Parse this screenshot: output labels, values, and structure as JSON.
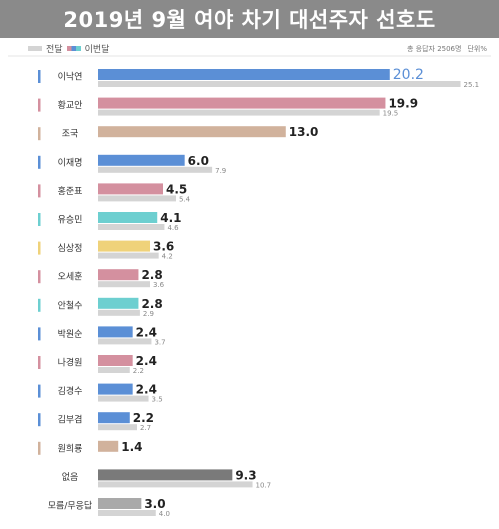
{
  "title": "2019년 9월 여야 차기 대선주자 선호도",
  "legend": {
    "previous": "전달",
    "current": "이번달",
    "previous_color": "#d4d4d4"
  },
  "note": {
    "sample": "총 응답자 2506명",
    "unit": "단위%"
  },
  "chart_data": {
    "type": "bar",
    "orientation": "horizontal",
    "title": "2019년 9월 여야 차기 대선주자 선호도",
    "categories": [
      "이낙연",
      "황교안",
      "조국",
      "이재명",
      "홍준표",
      "유승민",
      "심상정",
      "오세훈",
      "안철수",
      "박원순",
      "나경원",
      "김경수",
      "김부겸",
      "원희룡",
      "없음",
      "모름/무응답"
    ],
    "series": [
      {
        "name": "이번달",
        "values": [
          20.2,
          19.9,
          13.0,
          6.0,
          4.5,
          4.1,
          3.6,
          2.8,
          2.8,
          2.4,
          2.4,
          2.4,
          2.2,
          1.4,
          9.3,
          3.0
        ]
      },
      {
        "name": "전달",
        "values": [
          25.1,
          19.5,
          null,
          7.9,
          5.4,
          4.6,
          4.2,
          3.6,
          2.9,
          3.7,
          2.2,
          3.5,
          2.7,
          null,
          10.7,
          4.0
        ]
      }
    ],
    "current_colors": [
      "#5b8fd6",
      "#d4909f",
      "#d1b29c",
      "#5b8fd6",
      "#d4909f",
      "#6dcfd0",
      "#efd27a",
      "#d4909f",
      "#6dcfd0",
      "#5b8fd6",
      "#d4909f",
      "#5b8fd6",
      "#5b8fd6",
      "#d1b29c",
      "#7a7a7a",
      "#a9a9a9"
    ],
    "accent_colors": [
      "#5b8fd6",
      "#d4909f",
      "#d1b29c",
      "#5b8fd6",
      "#d4909f",
      "#6dcfd0",
      "#efd27a",
      "#d4909f",
      "#6dcfd0",
      "#5b8fd6",
      "#d4909f",
      "#5b8fd6",
      "#5b8fd6",
      "#d1b29c",
      null,
      null
    ],
    "highlight_first_value": true,
    "xlim": [
      0,
      27
    ],
    "grid": false,
    "legend_position": "top-left"
  }
}
